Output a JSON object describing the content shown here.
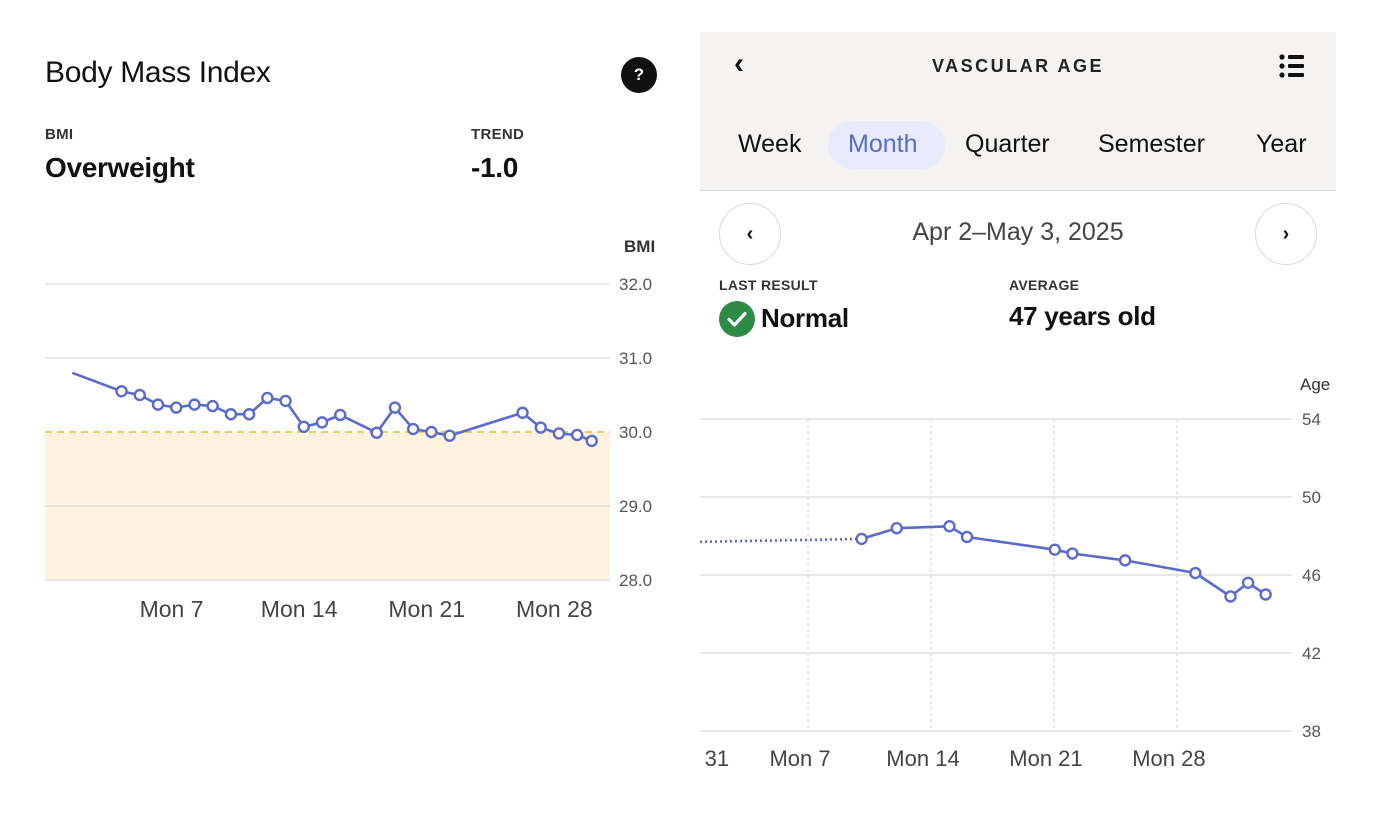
{
  "bmi_panel": {
    "title": "Body Mass Index",
    "help_icon": "?",
    "bmi_label": "BMI",
    "bmi_value": "Overweight",
    "trend_label": "TREND",
    "trend_value": "-1.0"
  },
  "vascular_panel": {
    "title": "VASCULAR AGE",
    "back_icon": "chevron-left-icon",
    "menu_icon": "list-icon",
    "tabs": [
      {
        "label": "Week",
        "active": false
      },
      {
        "label": "Month",
        "active": true
      },
      {
        "label": "Quarter",
        "active": false
      },
      {
        "label": "Semester",
        "active": false
      },
      {
        "label": "Year",
        "active": false
      }
    ],
    "prev_label": "‹",
    "next_label": "›",
    "date_range": "Apr 2–May 3, 2025",
    "last_result_label": "LAST RESULT",
    "last_result_value": "Normal",
    "average_label": "AVERAGE",
    "average_value": "47 years old"
  },
  "colors": {
    "line": "#5a6bcc",
    "overweight_band": "#fdf3df",
    "threshold": "#f5c95c",
    "grid": "#d9d9d9",
    "tab_active_bg": "#e7ebfb",
    "check_green": "#2e8b45"
  },
  "chart_data": [
    {
      "type": "line",
      "title": "Body Mass Index",
      "ylabel": "BMI",
      "ylim": [
        28.0,
        32.0
      ],
      "yticks": [
        "32.0",
        "31.0",
        "30.0",
        "29.0",
        "28.0"
      ],
      "xticks": [
        "Mon 7",
        "Mon 14",
        "Mon 21",
        "Mon 28"
      ],
      "x_unit": "day of month",
      "threshold": 30.0,
      "shaded_region": [
        28.0,
        30.0
      ],
      "grid": true,
      "series": [
        {
          "x": [
            1.5,
            4.2,
            5.2,
            6.2,
            7.2,
            8.2,
            9.2,
            10.2,
            11.2,
            12.2,
            13.2,
            14.2,
            15.2,
            16.2,
            18.2,
            19.2,
            20.2,
            21.2,
            22.2,
            26.2,
            27.2,
            28.2,
            29.2,
            30.0
          ],
          "y": [
            30.8,
            30.55,
            30.5,
            30.37,
            30.33,
            30.37,
            30.35,
            30.24,
            30.24,
            30.46,
            30.42,
            30.07,
            30.13,
            30.23,
            29.99,
            30.33,
            30.04,
            30.0,
            29.95,
            30.26,
            30.06,
            29.98,
            29.96,
            29.88
          ],
          "markers_from_index": 1
        }
      ]
    },
    {
      "type": "line",
      "title": "VASCULAR AGE",
      "ylabel": "Age",
      "ylim": [
        38,
        54
      ],
      "yticks": [
        "54",
        "50",
        "46",
        "42",
        "38"
      ],
      "xticks": [
        "31",
        "Mon 7",
        "Mon 14",
        "Mon 21",
        "Mon 28"
      ],
      "x_unit": "day of month",
      "grid": true,
      "dotted_segment": {
        "x": [
          0.0,
          9.2
        ],
        "y": [
          47.7,
          47.85
        ]
      },
      "series": [
        {
          "x": [
            9.2,
            11.2,
            14.2,
            15.2,
            20.2,
            21.2,
            24.2,
            28.2,
            30.2,
            31.2,
            32.2
          ],
          "y": [
            47.85,
            48.4,
            48.5,
            47.95,
            47.3,
            47.1,
            46.75,
            46.1,
            44.9,
            45.6,
            45.0
          ]
        }
      ]
    }
  ]
}
